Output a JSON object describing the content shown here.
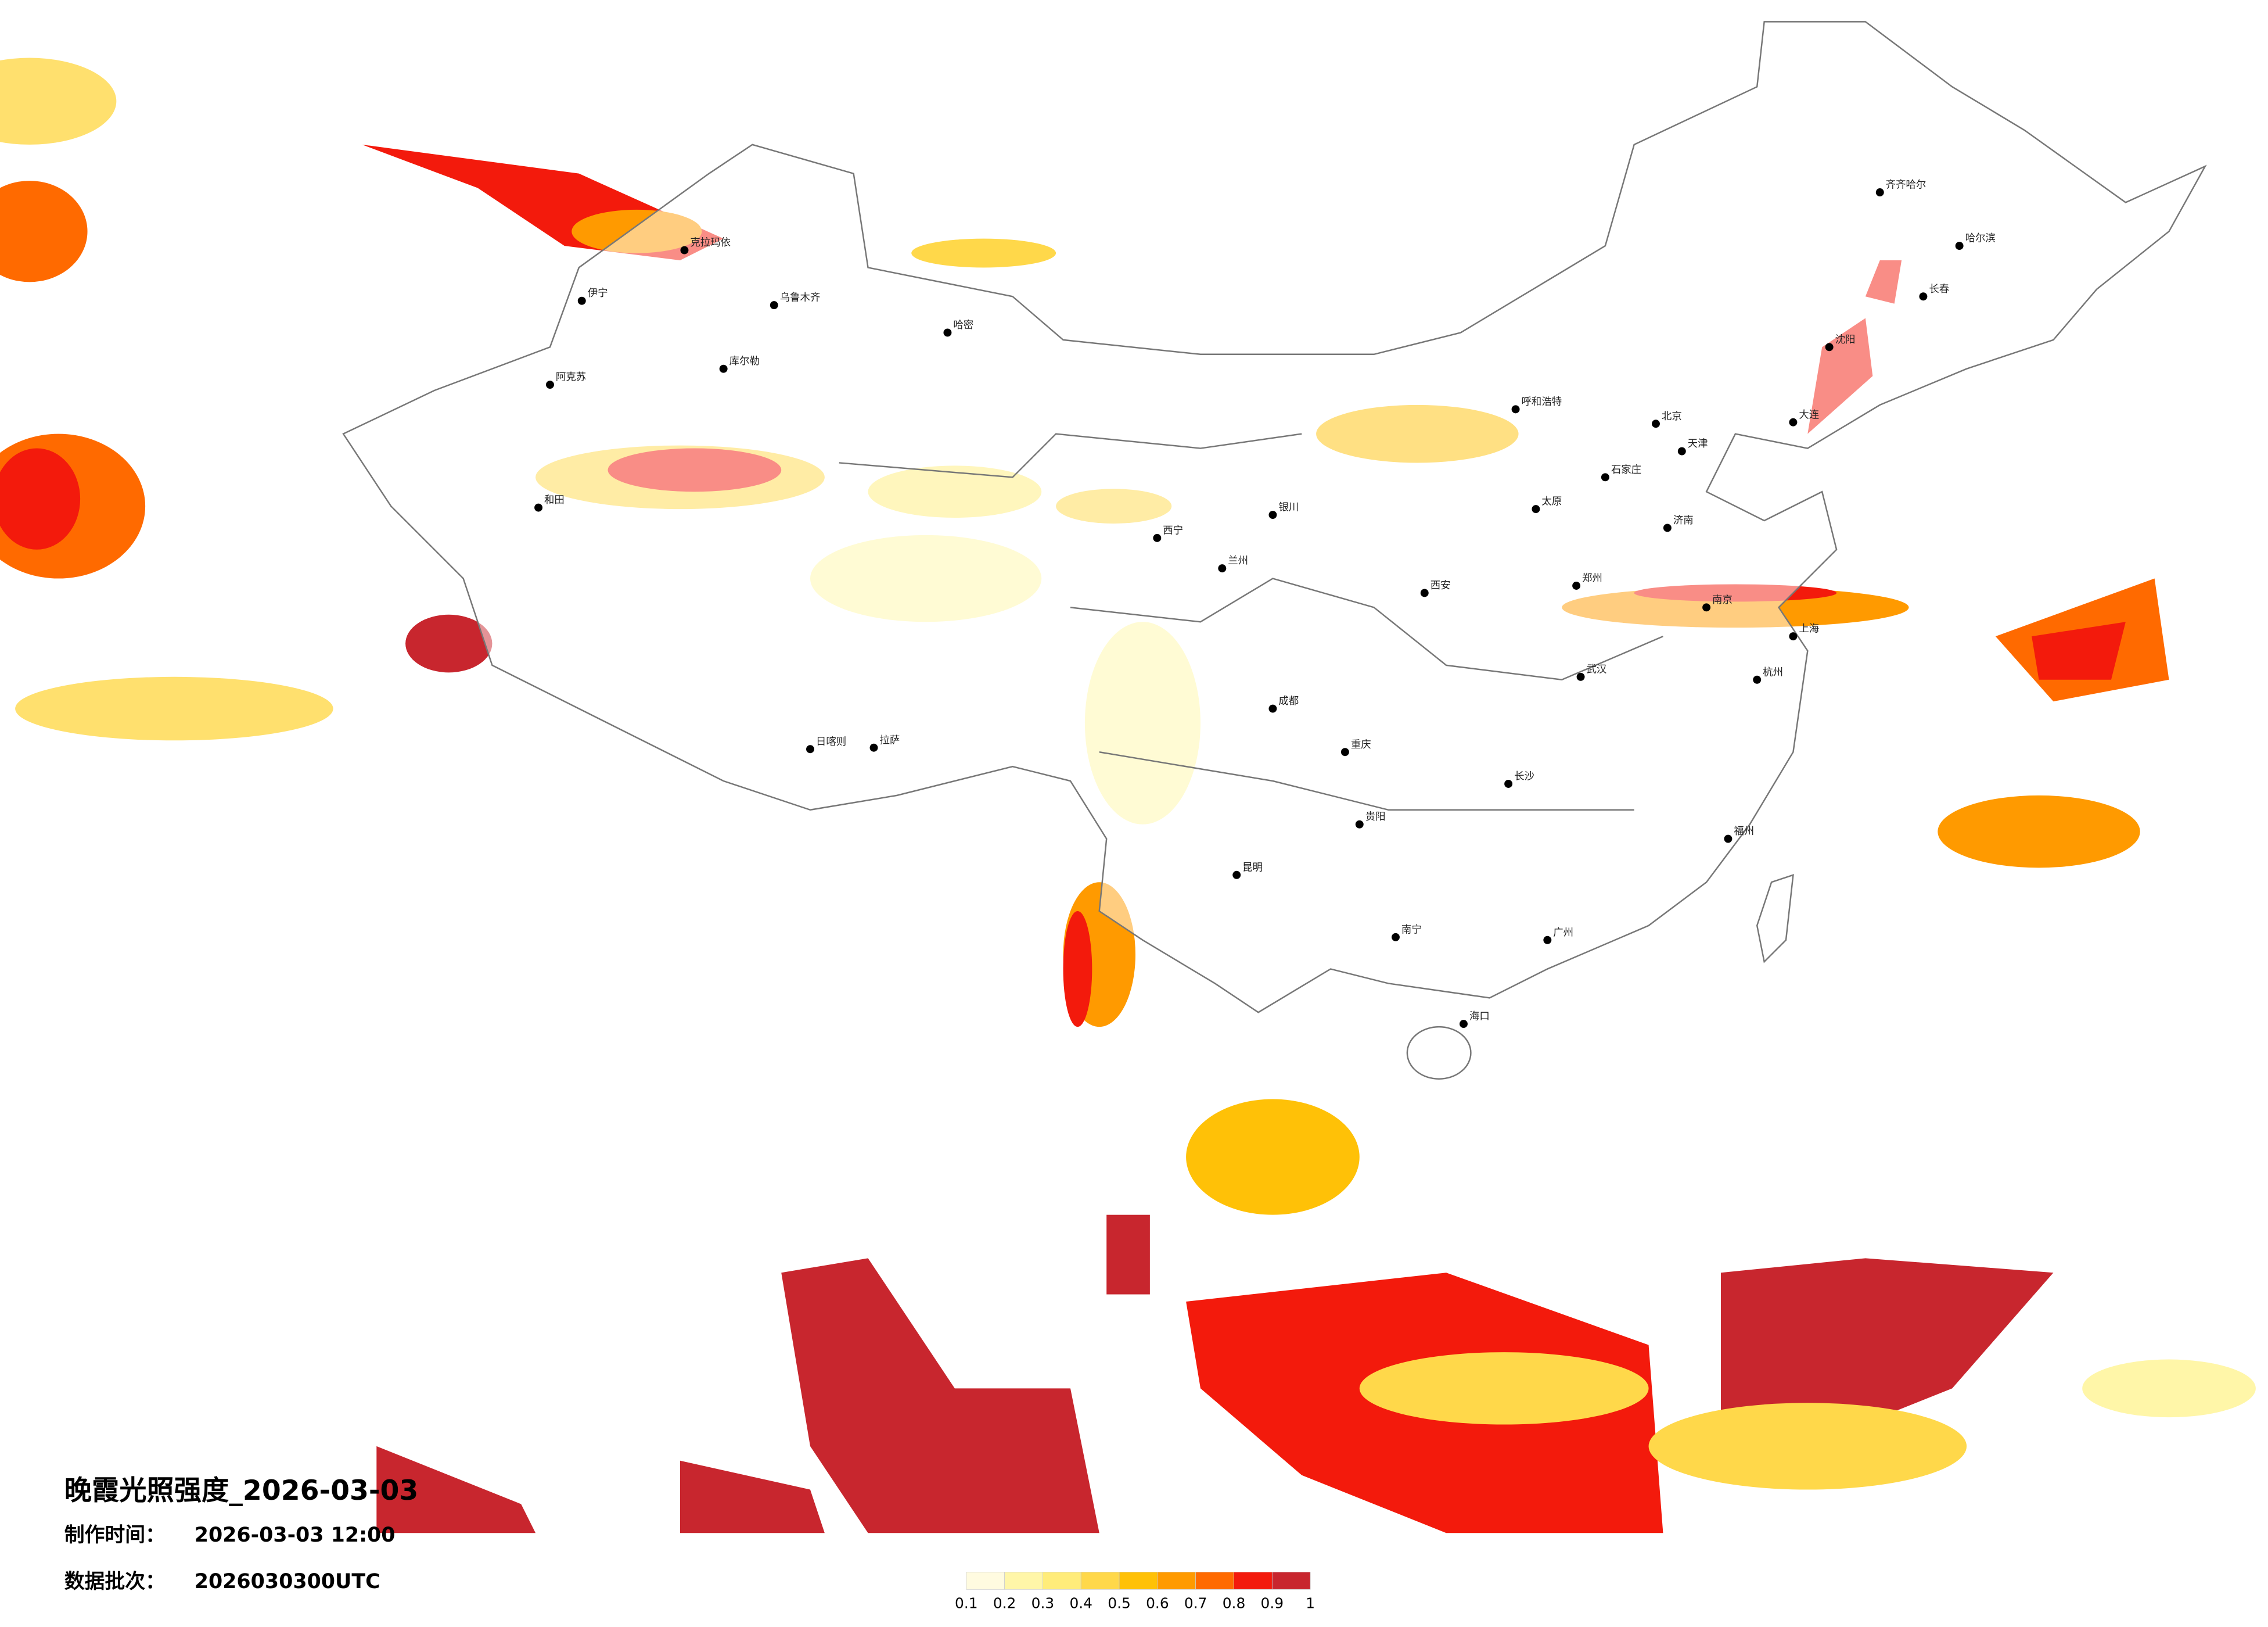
{
  "title": "晚霞光照强度_2026-03-03",
  "made_time": {
    "label": "制作时间：",
    "value": "2026-03-03 12:00"
  },
  "batch": {
    "label": "数据批次：",
    "value": "2026030300UTC"
  },
  "colorbar": {
    "ticks": [
      0.1,
      0.2,
      0.3,
      0.4,
      0.5,
      0.6,
      0.7,
      0.8,
      0.9,
      1
    ],
    "colors": [
      "#fffbe0",
      "#fff6a8",
      "#ffec7a",
      "#ffd84a",
      "#ffc107",
      "#ff9a00",
      "#ff6a00",
      "#f31a0c",
      "#c8262e"
    ]
  },
  "cities": [
    "乌鲁木齐",
    "克拉玛依",
    "伊宁",
    "库尔勒",
    "阿克苏",
    "和田",
    "哈密",
    "拉萨",
    "日喀则",
    "西宁",
    "兰州",
    "银川",
    "呼和浩特",
    "北京",
    "天津",
    "石家庄",
    "太原",
    "济南",
    "郑州",
    "西安",
    "成都",
    "重庆",
    "贵阳",
    "昆明",
    "南宁",
    "广州",
    "长沙",
    "武汉",
    "南京",
    "上海",
    "杭州",
    "福州",
    "海口",
    "沈阳",
    "长春",
    "哈尔滨",
    "齐齐哈尔",
    "大连"
  ]
}
